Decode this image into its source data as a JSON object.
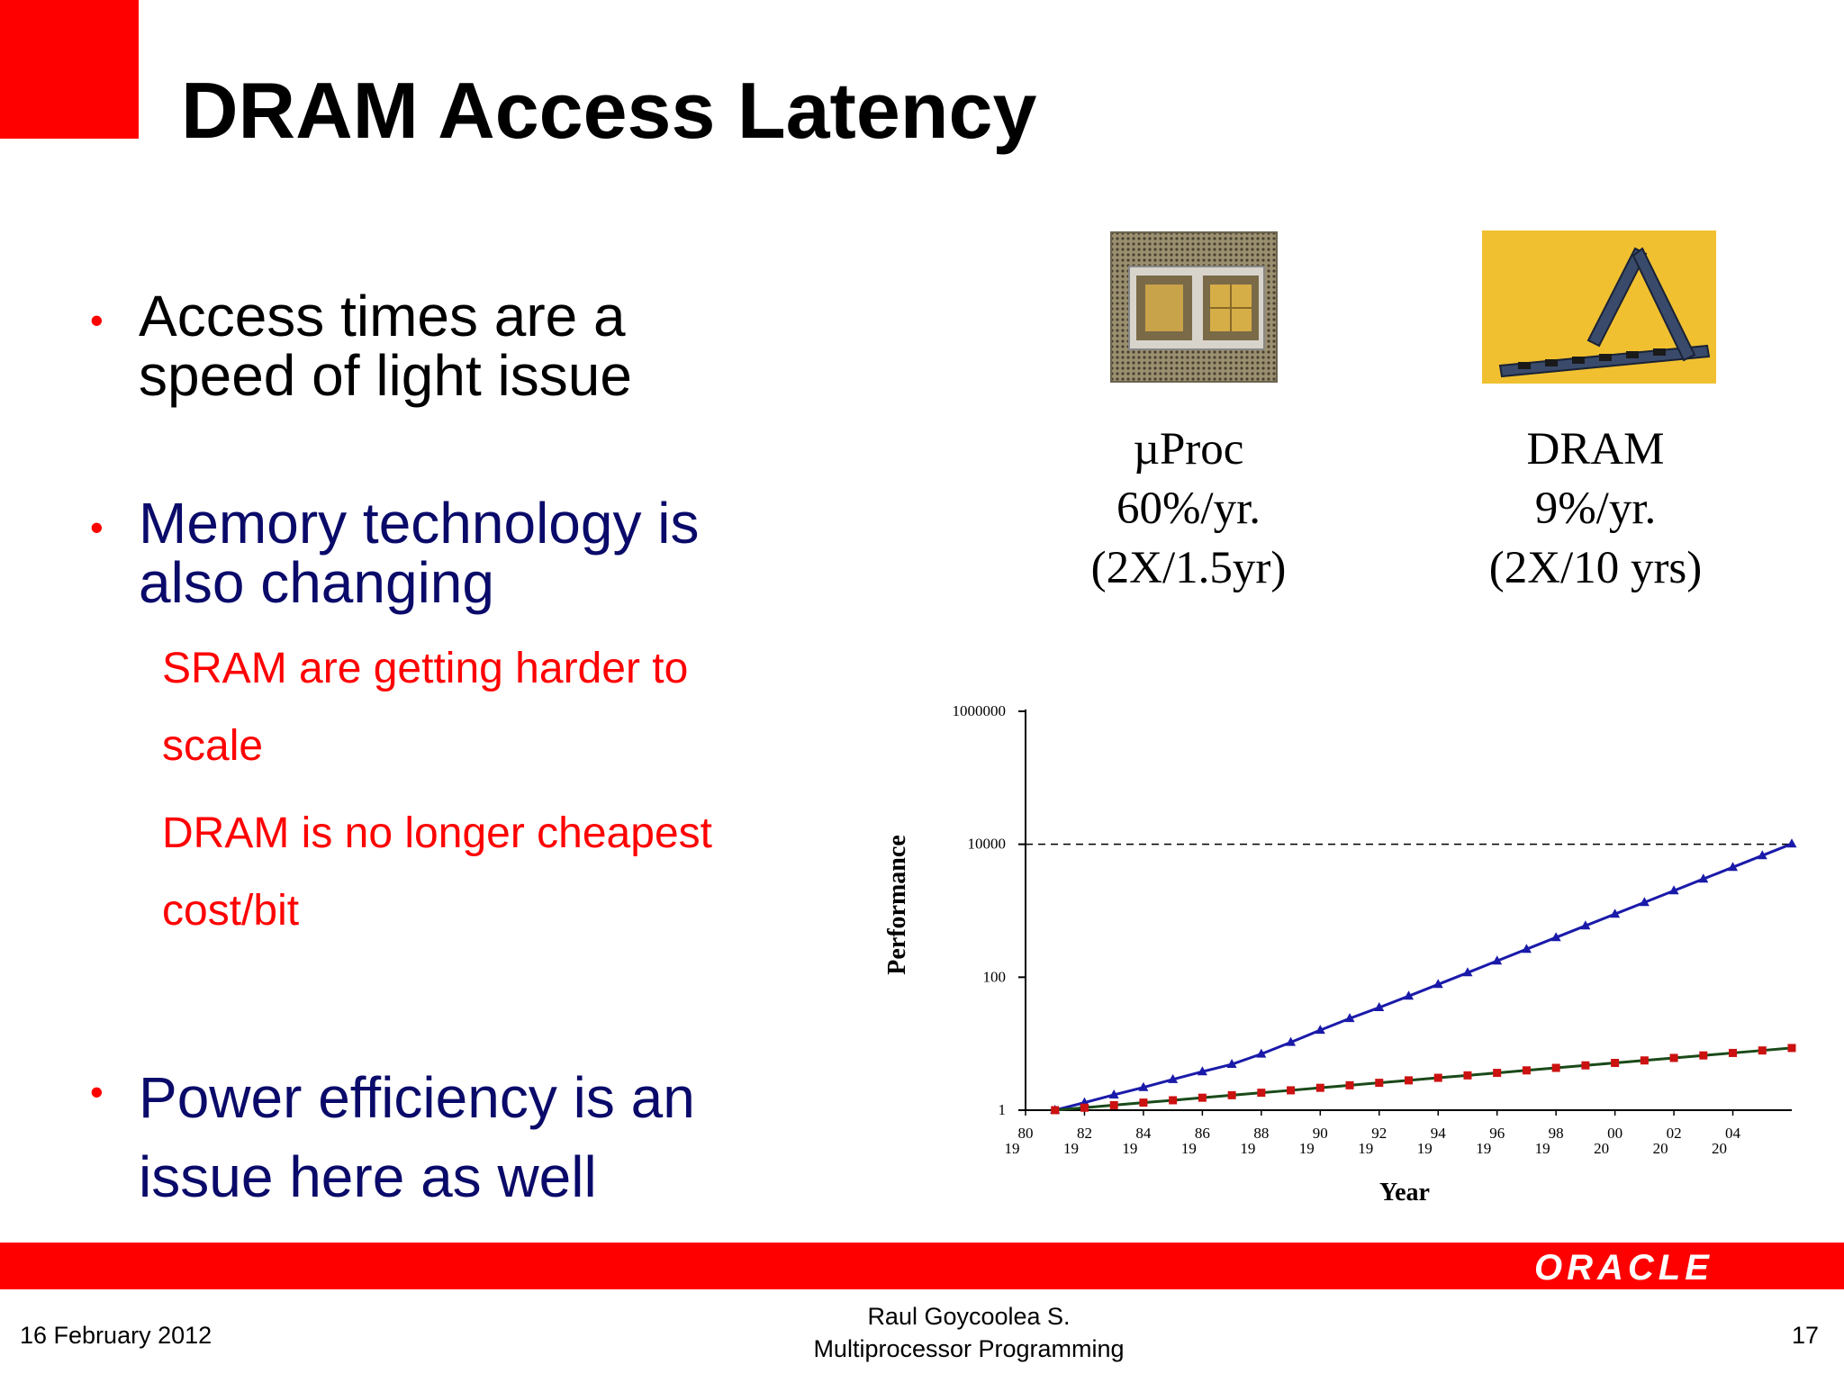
{
  "slide": {
    "title": "DRAM Access Latency",
    "bullets": [
      {
        "line1": "Access times are a",
        "line2": "speed of light issue"
      },
      {
        "line1": "Memory technology is",
        "line2": "also changing"
      },
      {
        "line1": "Power efficiency is an",
        "line2": "issue here as well"
      }
    ],
    "sub_bullets": [
      {
        "line1": "SRAM are getting harder to",
        "line2": "scale"
      },
      {
        "line1": "DRAM is no longer cheapest",
        "line2": "cost/bit"
      }
    ],
    "bullet_glyph": "•"
  },
  "captions": {
    "proc": {
      "line1": "µProc",
      "line2": "60%/yr.",
      "line3": "(2X/1.5yr)"
    },
    "dram": {
      "line1": "DRAM",
      "line2": "9%/yr.",
      "line3": "(2X/10 yrs)"
    }
  },
  "chart_data": {
    "type": "line",
    "title": "",
    "xlabel": "Year",
    "ylabel": "Performance",
    "y_scale": "log",
    "ylim": [
      1,
      1000000
    ],
    "y_ticks": [
      "1",
      "100",
      "10000",
      "1000000"
    ],
    "x_ticks": [
      {
        "top": "80",
        "bottom": "19"
      },
      {
        "top": "82",
        "bottom": "19"
      },
      {
        "top": "84",
        "bottom": "19"
      },
      {
        "top": "86",
        "bottom": "19"
      },
      {
        "top": "88",
        "bottom": "19"
      },
      {
        "top": "90",
        "bottom": "19"
      },
      {
        "top": "92",
        "bottom": "19"
      },
      {
        "top": "94",
        "bottom": "19"
      },
      {
        "top": "96",
        "bottom": "19"
      },
      {
        "top": "98",
        "bottom": "19"
      },
      {
        "top": "00",
        "bottom": "20"
      },
      {
        "top": "02",
        "bottom": "20"
      },
      {
        "top": "04",
        "bottom": "20"
      }
    ],
    "reference_line": 10000,
    "x": [
      1981,
      1982,
      1983,
      1984,
      1985,
      1986,
      1987,
      1988,
      1989,
      1990,
      1991,
      1992,
      1993,
      1994,
      1995,
      1996,
      1997,
      1998,
      1999,
      2000,
      2001,
      2002,
      2003,
      2004,
      2005,
      2006
    ],
    "series": [
      {
        "marker": "triangle",
        "color": "#1a1aaa",
        "values": [
          1,
          1.3,
          1.7,
          2.2,
          2.9,
          3.8,
          4.9,
          7,
          10.5,
          16,
          24,
          35,
          52,
          78,
          117,
          176,
          264,
          396,
          594,
          891,
          1336,
          2004,
          3007,
          4510,
          6765,
          10148
        ]
      },
      {
        "marker": "square",
        "color": "#cc1111",
        "values": [
          1,
          1.09,
          1.19,
          1.3,
          1.41,
          1.54,
          1.68,
          1.83,
          1.99,
          2.17,
          2.37,
          2.58,
          2.81,
          3.07,
          3.34,
          3.64,
          3.97,
          4.33,
          4.72,
          5.14,
          5.6,
          6.11,
          6.66,
          7.26,
          7.91,
          8.62
        ]
      }
    ]
  },
  "footer": {
    "date": "16 February 2012",
    "author": "Raul Goycoolea S.",
    "course": "Multiprocessor Programming",
    "page": "17",
    "logo": "ORACLE"
  },
  "colors": {
    "accent": "#ff0000",
    "bullet_text_blue": "#0a0a6a"
  }
}
